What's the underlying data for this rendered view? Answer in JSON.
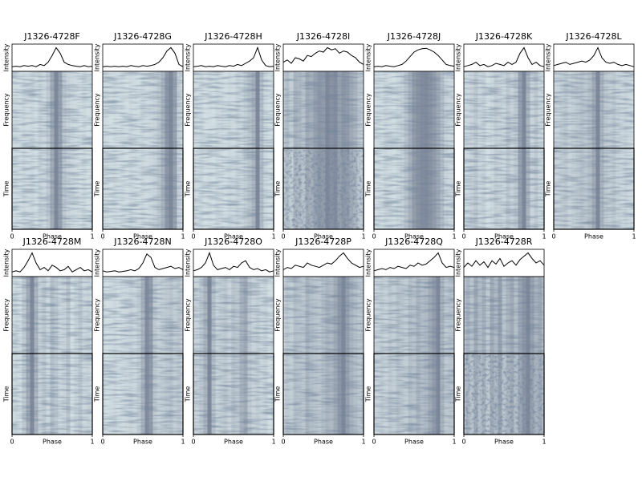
{
  "chart_data": [
    {
      "type": "line",
      "title": "J1326-4728F",
      "xlabel": "Phase",
      "ylabels": {
        "intensity": "Intensity",
        "frequency": "Frequency",
        "time": "Time"
      },
      "xlim": [
        0,
        1
      ],
      "xticks": [
        0,
        1
      ],
      "ylim": [
        0,
        1
      ],
      "color": "#000000",
      "x": [
        0,
        0.05,
        0.1,
        0.15,
        0.2,
        0.25,
        0.3,
        0.35,
        0.4,
        0.45,
        0.5,
        0.55,
        0.6,
        0.65,
        0.7,
        0.75,
        0.8,
        0.85,
        0.9,
        0.95,
        1
      ],
      "values": [
        0.1,
        0.12,
        0.1,
        0.15,
        0.12,
        0.15,
        0.1,
        0.2,
        0.15,
        0.3,
        0.6,
        0.95,
        0.7,
        0.3,
        0.2,
        0.15,
        0.12,
        0.1,
        0.15,
        0.1,
        0.12
      ]
    },
    {
      "type": "line",
      "title": "J1326-4728G",
      "xlabel": "Phase",
      "ylabels": {
        "intensity": "Intensity",
        "frequency": "Frequency",
        "time": "Time"
      },
      "xlim": [
        0,
        1
      ],
      "xticks": [
        0,
        1
      ],
      "ylim": [
        0,
        1
      ],
      "color": "#000000",
      "x": [
        0,
        0.05,
        0.1,
        0.15,
        0.2,
        0.25,
        0.3,
        0.35,
        0.4,
        0.45,
        0.5,
        0.55,
        0.6,
        0.65,
        0.7,
        0.75,
        0.8,
        0.85,
        0.9,
        0.95,
        1
      ],
      "values": [
        0.1,
        0.12,
        0.1,
        0.12,
        0.1,
        0.12,
        0.1,
        0.15,
        0.12,
        0.1,
        0.15,
        0.12,
        0.15,
        0.2,
        0.3,
        0.5,
        0.8,
        0.95,
        0.7,
        0.2,
        0.1
      ]
    },
    {
      "type": "line",
      "title": "J1326-4728H",
      "xlabel": "Phase",
      "ylabels": {
        "intensity": "Intensity",
        "frequency": "Frequency",
        "time": "Time"
      },
      "xlim": [
        0,
        1
      ],
      "xticks": [
        0,
        1
      ],
      "ylim": [
        0,
        1
      ],
      "color": "#000000",
      "x": [
        0,
        0.05,
        0.1,
        0.15,
        0.2,
        0.25,
        0.3,
        0.35,
        0.4,
        0.45,
        0.5,
        0.55,
        0.6,
        0.65,
        0.7,
        0.75,
        0.8,
        0.85,
        0.9,
        0.95,
        1
      ],
      "values": [
        0.1,
        0.12,
        0.15,
        0.1,
        0.12,
        0.1,
        0.15,
        0.12,
        0.1,
        0.15,
        0.12,
        0.2,
        0.15,
        0.25,
        0.35,
        0.5,
        0.95,
        0.4,
        0.15,
        0.1,
        0.12
      ]
    },
    {
      "type": "line",
      "title": "J1326-4728I",
      "xlabel": "Phase",
      "ylabels": {
        "intensity": "Intensity",
        "frequency": "Frequency",
        "time": "Time"
      },
      "xlim": [
        0,
        1
      ],
      "xticks": [
        0,
        1
      ],
      "ylim": [
        0,
        1
      ],
      "color": "#000000",
      "x": [
        0,
        0.05,
        0.1,
        0.15,
        0.2,
        0.25,
        0.3,
        0.35,
        0.4,
        0.45,
        0.5,
        0.55,
        0.6,
        0.65,
        0.7,
        0.75,
        0.8,
        0.85,
        0.9,
        0.95,
        1
      ],
      "values": [
        0.3,
        0.4,
        0.25,
        0.5,
        0.45,
        0.35,
        0.6,
        0.55,
        0.7,
        0.8,
        0.75,
        0.95,
        0.85,
        0.9,
        0.7,
        0.8,
        0.75,
        0.6,
        0.5,
        0.3,
        0.2
      ]
    },
    {
      "type": "line",
      "title": "J1326-4728J",
      "xlabel": "Phase",
      "ylabels": {
        "intensity": "Intensity",
        "frequency": "Frequency",
        "time": "Time"
      },
      "xlim": [
        0,
        1
      ],
      "xticks": [
        0,
        1
      ],
      "ylim": [
        0,
        1
      ],
      "color": "#000000",
      "x": [
        0,
        0.05,
        0.1,
        0.15,
        0.2,
        0.25,
        0.3,
        0.35,
        0.4,
        0.45,
        0.5,
        0.55,
        0.6,
        0.65,
        0.7,
        0.75,
        0.8,
        0.85,
        0.9,
        0.95,
        1
      ],
      "values": [
        0.1,
        0.12,
        0.1,
        0.15,
        0.12,
        0.1,
        0.15,
        0.2,
        0.35,
        0.55,
        0.75,
        0.85,
        0.9,
        0.92,
        0.85,
        0.75,
        0.6,
        0.4,
        0.2,
        0.15,
        0.12
      ]
    },
    {
      "type": "line",
      "title": "J1326-4728K",
      "xlabel": "Phase",
      "ylabels": {
        "intensity": "Intensity",
        "frequency": "Frequency",
        "time": "Time"
      },
      "xlim": [
        0,
        1
      ],
      "xticks": [
        0,
        1
      ],
      "ylim": [
        0,
        1
      ],
      "color": "#000000",
      "x": [
        0,
        0.05,
        0.1,
        0.15,
        0.2,
        0.25,
        0.3,
        0.35,
        0.4,
        0.45,
        0.5,
        0.55,
        0.6,
        0.65,
        0.7,
        0.75,
        0.8,
        0.85,
        0.9,
        0.95,
        1
      ],
      "values": [
        0.1,
        0.15,
        0.2,
        0.3,
        0.15,
        0.2,
        0.1,
        0.15,
        0.25,
        0.2,
        0.15,
        0.3,
        0.2,
        0.3,
        0.7,
        0.95,
        0.5,
        0.2,
        0.3,
        0.15,
        0.1
      ]
    },
    {
      "type": "line",
      "title": "J1326-4728L",
      "xlabel": "Phase",
      "ylabels": {
        "intensity": "Intensity",
        "frequency": "Frequency",
        "time": "Time"
      },
      "xlim": [
        0,
        1
      ],
      "xticks": [
        0,
        1
      ],
      "ylim": [
        0,
        1
      ],
      "color": "#000000",
      "x": [
        0,
        0.05,
        0.1,
        0.15,
        0.2,
        0.25,
        0.3,
        0.35,
        0.4,
        0.45,
        0.5,
        0.55,
        0.6,
        0.65,
        0.7,
        0.75,
        0.8,
        0.85,
        0.9,
        0.95,
        1
      ],
      "values": [
        0.15,
        0.2,
        0.25,
        0.3,
        0.2,
        0.25,
        0.3,
        0.35,
        0.3,
        0.4,
        0.6,
        0.95,
        0.5,
        0.3,
        0.25,
        0.3,
        0.2,
        0.15,
        0.2,
        0.15,
        0.1
      ]
    },
    {
      "type": "line",
      "title": "J1326-4728M",
      "xlabel": "Phase",
      "ylabels": {
        "intensity": "Intensity",
        "frequency": "Frequency",
        "time": "Time"
      },
      "xlim": [
        0,
        1
      ],
      "xticks": [
        0,
        1
      ],
      "ylim": [
        0,
        1
      ],
      "color": "#000000",
      "x": [
        0,
        0.05,
        0.1,
        0.15,
        0.2,
        0.25,
        0.3,
        0.35,
        0.4,
        0.45,
        0.5,
        0.55,
        0.6,
        0.65,
        0.7,
        0.75,
        0.8,
        0.85,
        0.9,
        0.95,
        1
      ],
      "values": [
        0.1,
        0.15,
        0.1,
        0.3,
        0.6,
        0.95,
        0.5,
        0.2,
        0.3,
        0.15,
        0.4,
        0.3,
        0.15,
        0.2,
        0.35,
        0.1,
        0.2,
        0.3,
        0.15,
        0.2,
        0.1
      ]
    },
    {
      "type": "line",
      "title": "J1326-4728N",
      "xlabel": "Phase",
      "ylabels": {
        "intensity": "Intensity",
        "frequency": "Frequency",
        "time": "Time"
      },
      "xlim": [
        0,
        1
      ],
      "xticks": [
        0,
        1
      ],
      "ylim": [
        0,
        1
      ],
      "color": "#000000",
      "x": [
        0,
        0.05,
        0.1,
        0.15,
        0.2,
        0.25,
        0.3,
        0.35,
        0.4,
        0.45,
        0.5,
        0.55,
        0.6,
        0.65,
        0.7,
        0.75,
        0.8,
        0.85,
        0.9,
        0.95,
        1
      ],
      "values": [
        0.15,
        0.1,
        0.12,
        0.15,
        0.1,
        0.12,
        0.15,
        0.2,
        0.15,
        0.25,
        0.5,
        0.9,
        0.75,
        0.3,
        0.2,
        0.25,
        0.3,
        0.35,
        0.25,
        0.3,
        0.2
      ]
    },
    {
      "type": "line",
      "title": "J1326-4728O",
      "xlabel": "Phase",
      "ylabels": {
        "intensity": "Intensity",
        "frequency": "Frequency",
        "time": "Time"
      },
      "xlim": [
        0,
        1
      ],
      "xticks": [
        0,
        1
      ],
      "ylim": [
        0,
        1
      ],
      "color": "#000000",
      "x": [
        0,
        0.05,
        0.1,
        0.15,
        0.2,
        0.25,
        0.3,
        0.35,
        0.4,
        0.45,
        0.5,
        0.55,
        0.6,
        0.65,
        0.7,
        0.75,
        0.8,
        0.85,
        0.9,
        0.95,
        1
      ],
      "values": [
        0.15,
        0.2,
        0.3,
        0.5,
        0.95,
        0.4,
        0.2,
        0.25,
        0.3,
        0.2,
        0.35,
        0.3,
        0.5,
        0.6,
        0.3,
        0.2,
        0.25,
        0.15,
        0.2,
        0.1,
        0.15
      ]
    },
    {
      "type": "line",
      "title": "J1326-4728P",
      "xlabel": "Phase",
      "ylabels": {
        "intensity": "Intensity",
        "frequency": "Frequency",
        "time": "Time"
      },
      "xlim": [
        0,
        1
      ],
      "xticks": [
        0,
        1
      ],
      "ylim": [
        0,
        1
      ],
      "color": "#000000",
      "x": [
        0,
        0.05,
        0.1,
        0.15,
        0.2,
        0.25,
        0.3,
        0.35,
        0.4,
        0.45,
        0.5,
        0.55,
        0.6,
        0.65,
        0.7,
        0.75,
        0.8,
        0.85,
        0.9,
        0.95,
        1
      ],
      "values": [
        0.2,
        0.3,
        0.25,
        0.4,
        0.35,
        0.3,
        0.5,
        0.4,
        0.35,
        0.3,
        0.4,
        0.5,
        0.45,
        0.6,
        0.8,
        0.95,
        0.7,
        0.5,
        0.4,
        0.3,
        0.35
      ]
    },
    {
      "type": "line",
      "title": "J1326-4728Q",
      "xlabel": "Phase",
      "ylabels": {
        "intensity": "Intensity",
        "frequency": "Frequency",
        "time": "Time"
      },
      "xlim": [
        0,
        1
      ],
      "xticks": [
        0,
        1
      ],
      "ylim": [
        0,
        1
      ],
      "color": "#000000",
      "x": [
        0,
        0.05,
        0.1,
        0.15,
        0.2,
        0.25,
        0.3,
        0.35,
        0.4,
        0.45,
        0.5,
        0.55,
        0.6,
        0.65,
        0.7,
        0.75,
        0.8,
        0.85,
        0.9,
        0.95,
        1
      ],
      "values": [
        0.15,
        0.2,
        0.25,
        0.2,
        0.3,
        0.25,
        0.35,
        0.3,
        0.25,
        0.4,
        0.35,
        0.5,
        0.4,
        0.45,
        0.6,
        0.75,
        0.95,
        0.5,
        0.3,
        0.35,
        0.3
      ]
    },
    {
      "type": "line",
      "title": "J1326-4728R",
      "xlabel": "Phase",
      "ylabels": {
        "intensity": "Intensity",
        "frequency": "Frequency",
        "time": "Time"
      },
      "xlim": [
        0,
        1
      ],
      "xticks": [
        0,
        1
      ],
      "ylim": [
        0,
        1
      ],
      "color": "#000000",
      "x": [
        0,
        0.05,
        0.1,
        0.15,
        0.2,
        0.25,
        0.3,
        0.35,
        0.4,
        0.45,
        0.5,
        0.55,
        0.6,
        0.65,
        0.7,
        0.75,
        0.8,
        0.85,
        0.9,
        0.95,
        1
      ],
      "values": [
        0.3,
        0.5,
        0.35,
        0.6,
        0.4,
        0.55,
        0.3,
        0.6,
        0.45,
        0.7,
        0.35,
        0.5,
        0.6,
        0.4,
        0.65,
        0.8,
        0.95,
        0.7,
        0.5,
        0.6,
        0.4
      ]
    }
  ]
}
